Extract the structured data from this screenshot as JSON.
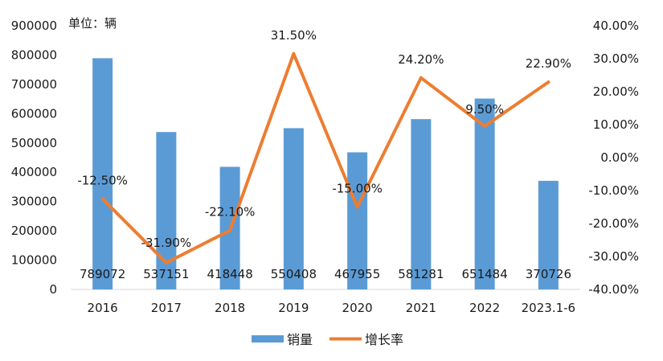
{
  "chart_data": {
    "type": "bar",
    "unit_label": "单位：辆",
    "categories": [
      "2016",
      "2017",
      "2018",
      "2019",
      "2020",
      "2021",
      "2022",
      "2023.1-6"
    ],
    "series": [
      {
        "name": "销量",
        "type": "bar",
        "axis": "left",
        "color": "#5b9bd5",
        "values": [
          789072,
          537151,
          418448,
          550408,
          467955,
          581281,
          651484,
          370726
        ],
        "labels": [
          "789072",
          "537151",
          "418448",
          "550408",
          "467955",
          "581281",
          "651484",
          "370726"
        ]
      },
      {
        "name": "增长率",
        "type": "line",
        "axis": "right",
        "color": "#ed7d31",
        "values": [
          -12.5,
          -31.9,
          -22.1,
          31.5,
          -15.0,
          24.2,
          9.5,
          22.9
        ],
        "labels": [
          "-12.50%",
          "-31.90%",
          "-22.10%",
          "31.50%",
          "-15.00%",
          "24.20%",
          "9.50%",
          "22.90%"
        ]
      }
    ],
    "left_axis": {
      "min": 0,
      "max": 900000,
      "ticks": [
        0,
        100000,
        200000,
        300000,
        400000,
        500000,
        600000,
        700000,
        800000,
        900000
      ],
      "tick_labels": [
        "0",
        "100000",
        "200000",
        "300000",
        "400000",
        "500000",
        "600000",
        "700000",
        "800000",
        "900000"
      ]
    },
    "right_axis": {
      "min": -40,
      "max": 40,
      "ticks": [
        -40,
        -30,
        -20,
        -10,
        0,
        10,
        20,
        30,
        40
      ],
      "tick_labels": [
        "-40.00%",
        "-30.00%",
        "-20.00%",
        "-10.00%",
        "0.00%",
        "10.00%",
        "20.00%",
        "30.00%",
        "40.00%"
      ]
    },
    "legend": {
      "position": "bottom",
      "items": [
        "销量",
        "增长率"
      ]
    },
    "grid": false
  }
}
